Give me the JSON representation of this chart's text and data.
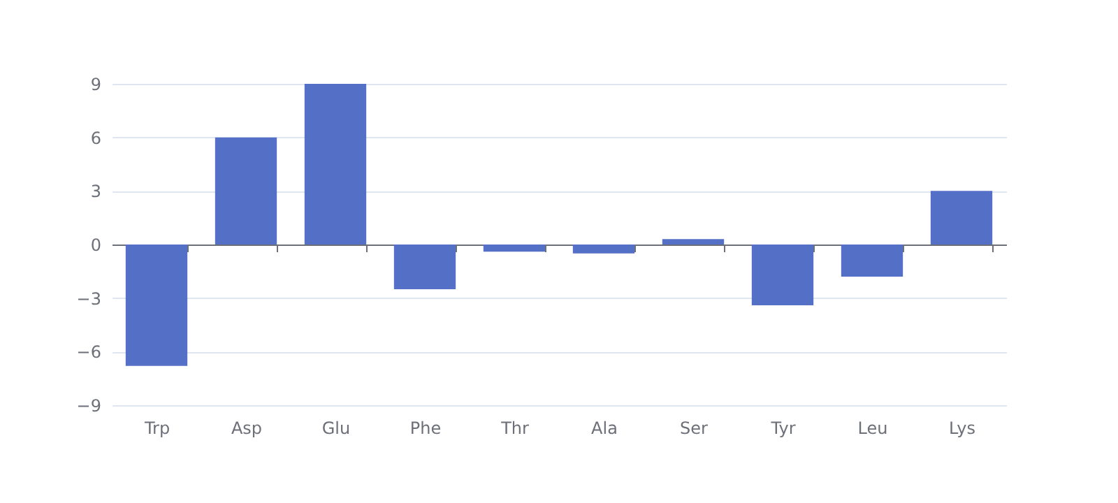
{
  "chart_data": {
    "type": "bar",
    "categories": [
      "Trp",
      "Asp",
      "Glu",
      "Phe",
      "Thr",
      "Ala",
      "Ser",
      "Tyr",
      "Leu",
      "Lys"
    ],
    "values": [
      -6.8,
      6,
      9,
      -2.5,
      -0.4,
      -0.5,
      0.3,
      -3.4,
      -1.8,
      3
    ],
    "color": "#5470c6",
    "ylim": [
      -9,
      9
    ],
    "yticks": [
      -9,
      -6,
      -3,
      0,
      3,
      6,
      9
    ],
    "grid": "y"
  }
}
